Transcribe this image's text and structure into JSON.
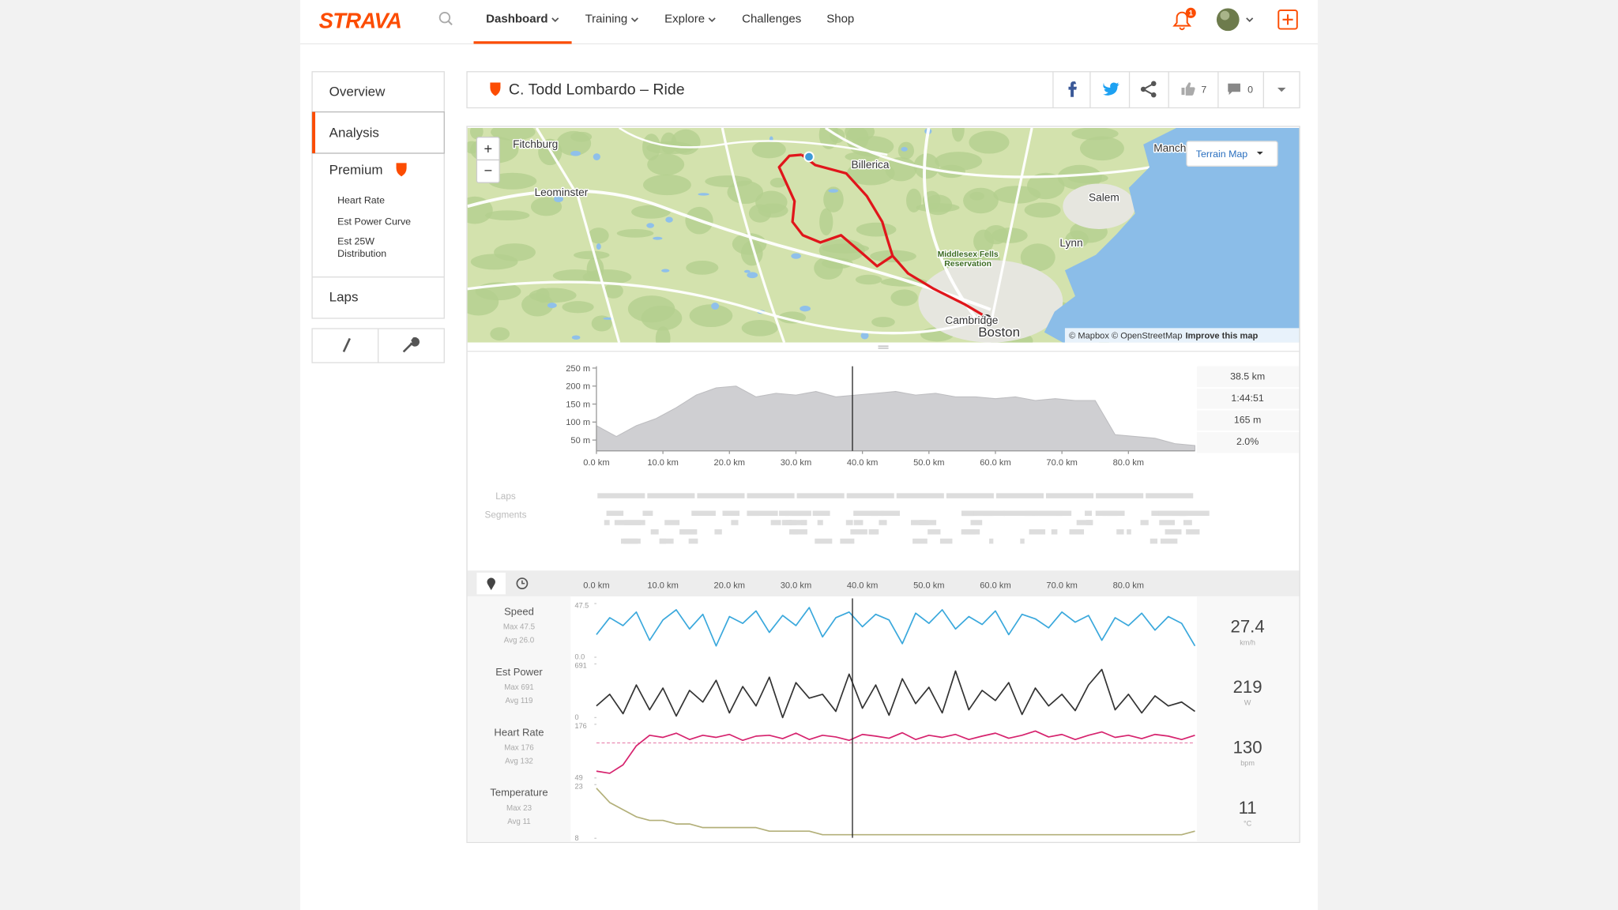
{
  "header": {
    "logo": "STRAVA",
    "nav": [
      "Dashboard",
      "Training",
      "Explore",
      "Challenges",
      "Shop"
    ],
    "notifications": "1"
  },
  "sidebar": {
    "items": [
      "Overview",
      "Analysis",
      "Premium"
    ],
    "premium_items": [
      "Heart Rate",
      "Est Power Curve",
      "Est 25W Distribution"
    ],
    "laps": "Laps"
  },
  "activity": {
    "title": "C. Todd Lombardo – Ride",
    "kudos": 7,
    "comments": 0
  },
  "map": {
    "labels": [
      "Fitchburg",
      "Billerica",
      "Leominster",
      "Manch",
      "Salem",
      "Lynn",
      "Middlesex Fells",
      "Reservation",
      "Cambridge",
      "Boston"
    ],
    "zoom_in": "+",
    "zoom_out": "−",
    "control": "Terrain Map",
    "attribution": "© Mapbox © OpenStreetMap",
    "improve": "Improve this map"
  },
  "analysis": {
    "laps": "Laps",
    "segments": "Segments"
  },
  "chart_data": [
    {
      "type": "area",
      "color": "#cfcfd2",
      "x": [
        0,
        3,
        6,
        9,
        12,
        15,
        18,
        21,
        24,
        27,
        30,
        33,
        36,
        39,
        42,
        45,
        48,
        51,
        54,
        57,
        60,
        63,
        66,
        69,
        72,
        75,
        78,
        81,
        84,
        87,
        90
      ],
      "values": [
        90,
        60,
        90,
        110,
        140,
        175,
        195,
        200,
        170,
        180,
        175,
        185,
        170,
        175,
        180,
        185,
        175,
        180,
        170,
        170,
        165,
        170,
        160,
        165,
        160,
        160,
        65,
        60,
        55,
        40,
        35
      ],
      "xlim": [
        0,
        90
      ],
      "ylim": [
        20,
        255
      ],
      "xticks": [
        {
          "value": 0,
          "label": "0.0 km"
        },
        {
          "value": 10,
          "label": "10.0 km"
        },
        {
          "value": 20,
          "label": "20.0 km"
        },
        {
          "value": 30,
          "label": "30.0 km"
        },
        {
          "value": 40,
          "label": "40.0 km"
        },
        {
          "value": 50,
          "label": "50.0 km"
        },
        {
          "value": 60,
          "label": "60.0 km"
        },
        {
          "value": 70,
          "label": "70.0 km"
        },
        {
          "value": 80,
          "label": "80.0 km"
        }
      ],
      "yticks": [
        {
          "value": 250,
          "label": "250 m"
        },
        {
          "value": 200,
          "label": "200 m"
        },
        {
          "value": 150,
          "label": "150 m"
        },
        {
          "value": 100,
          "label": "100 m"
        },
        {
          "value": 50,
          "label": "50 m"
        }
      ],
      "stats": [
        {
          "value": 38.5,
          "label": "38.5 km"
        },
        "1:44:51",
        "165 m",
        "2.0%"
      ]
    },
    {
      "type": "line",
      "x": [
        0,
        2,
        4,
        6,
        8,
        10,
        12,
        14,
        16,
        18,
        20,
        22,
        24,
        26,
        28,
        30,
        32,
        34,
        36,
        38,
        40,
        42,
        44,
        46,
        48,
        50,
        52,
        54,
        56,
        58,
        60,
        62,
        64,
        66,
        68,
        70,
        72,
        74,
        76,
        78,
        80,
        82,
        84,
        86,
        88,
        90
      ],
      "xlim": [
        0,
        90
      ],
      "xticks": [
        {
          "value": 0,
          "label": "0.0 km"
        },
        {
          "value": 10,
          "label": "10.0 km"
        },
        {
          "value": 20,
          "label": "20.0 km"
        },
        {
          "value": 30,
          "label": "30.0 km"
        },
        {
          "value": 40,
          "label": "40.0 km"
        },
        {
          "value": 50,
          "label": "50.0 km"
        },
        {
          "value": 60,
          "label": "60.0 km"
        },
        {
          "value": 70,
          "label": "70.0 km"
        },
        {
          "value": 80,
          "label": "80.0 km"
        }
      ],
      "series": [
        {
          "name": "Speed",
          "color": "#3aa8dc",
          "max": "Max 47.5",
          "avg": "Avg 26.0",
          "current": 27.4,
          "unit": "km/h",
          "ylim": [
            0,
            47.5
          ],
          "yticks": [
            47.5,
            {
              "value": 0,
              "label": "0.0"
            }
          ],
          "values": [
            20,
            35,
            28,
            40,
            15,
            33,
            42,
            25,
            38,
            10,
            36,
            30,
            41,
            22,
            37,
            28,
            44,
            18,
            35,
            40,
            27,
            38,
            33,
            12,
            39,
            30,
            42,
            25,
            36,
            29,
            41,
            20,
            38,
            34,
            26,
            40,
            31,
            37,
            15,
            35,
            28,
            39,
            24,
            36,
            30,
            10
          ]
        },
        {
          "name": "Est Power",
          "color": "#333333",
          "max": "Max 691",
          "avg": "Avg 119",
          "current": 219,
          "unit": "W",
          "ylim": [
            0,
            691
          ],
          "yticks": [
            691,
            0
          ],
          "values": [
            150,
            300,
            50,
            420,
            100,
            380,
            20,
            350,
            200,
            480,
            60,
            400,
            150,
            520,
            0,
            450,
            250,
            300,
            80,
            560,
            120,
            420,
            30,
            500,
            180,
            390,
            60,
            600,
            100,
            350,
            220,
            450,
            40,
            380,
            150,
            300,
            90,
            420,
            620,
            100,
            300,
            60,
            280,
            150,
            200,
            80
          ]
        },
        {
          "name": "Heart Rate",
          "color": "#d6236e",
          "max": "Max 176",
          "avg": {
            "value": 132,
            "label": "Avg 132"
          },
          "avg_line": true,
          "current": 130,
          "unit": "bpm",
          "ylim": [
            49,
            176
          ],
          "yticks": [
            176,
            49
          ],
          "values": [
            65,
            60,
            80,
            125,
            150,
            145,
            155,
            140,
            150,
            145,
            152,
            138,
            148,
            150,
            142,
            155,
            140,
            150,
            146,
            138,
            152,
            148,
            143,
            156,
            140,
            150,
            145,
            152,
            140,
            148,
            155,
            143,
            150,
            160,
            146,
            152,
            140,
            150,
            158,
            145,
            150,
            142,
            152,
            148,
            140,
            150
          ]
        },
        {
          "name": "Temperature",
          "color": "#b3b07a",
          "max": "Max 23",
          "avg": "Avg 11",
          "current": 11,
          "unit": "°C",
          "ylim": [
            8,
            23
          ],
          "yticks": [
            23,
            8
          ],
          "values": [
            22,
            18,
            16,
            14,
            13,
            13,
            12,
            12,
            11,
            11,
            11,
            11,
            11,
            10,
            10,
            10,
            10,
            9,
            9,
            9,
            9,
            9,
            9,
            9,
            9,
            9,
            9,
            9,
            9,
            9,
            9,
            9,
            9,
            9,
            9,
            9,
            9,
            9,
            9,
            9,
            9,
            9,
            9,
            9,
            9,
            10
          ]
        }
      ]
    }
  ]
}
